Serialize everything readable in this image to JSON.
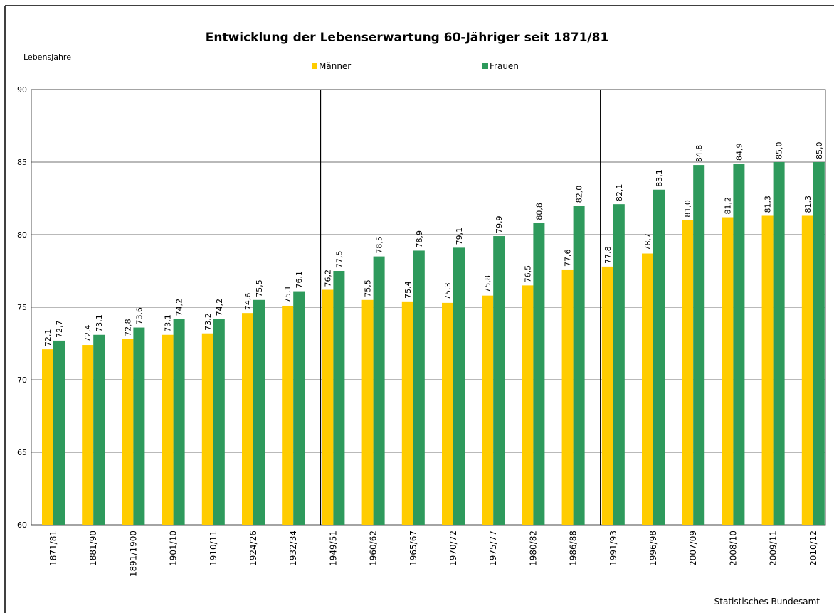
{
  "chart_data": {
    "type": "bar",
    "title": "Entwicklung der Lebenserwartung 60-Jähriger seit 1871/81",
    "y_axis_label": "Lebensjahre",
    "source": "Statistisches Bundesamt",
    "categories": [
      "1871/81",
      "1881/90",
      "1891/1900",
      "1901/10",
      "1910/11",
      "1924/26",
      "1932/34",
      "1949/51",
      "1960/62",
      "1965/67",
      "1970/72",
      "1975/77",
      "1980/82",
      "1986/88",
      "1991/93",
      "1996/98",
      "2007/09",
      "2008/10",
      "2009/11",
      "2010/12"
    ],
    "series": [
      {
        "name": "Männer",
        "color": "#ffcc00",
        "values": [
          72.1,
          72.4,
          72.8,
          73.1,
          73.2,
          74.6,
          75.1,
          76.2,
          75.5,
          75.4,
          75.3,
          75.8,
          76.5,
          77.6,
          77.8,
          78.7,
          81.0,
          81.2,
          81.3,
          81.3
        ],
        "value_labels": [
          "72,1",
          "72,4",
          "72,8",
          "73,1",
          "73,2",
          "74,6",
          "75,1",
          "76,2",
          "75,5",
          "75,4",
          "75,3",
          "75,8",
          "76,5",
          "77,6",
          "77,8",
          "78,7",
          "81,0",
          "81,2",
          "81,3",
          "81,3"
        ]
      },
      {
        "name": "Frauen",
        "color": "#2e9a5c",
        "values": [
          72.7,
          73.1,
          73.6,
          74.2,
          74.2,
          75.5,
          76.1,
          77.5,
          78.5,
          78.9,
          79.1,
          79.9,
          80.8,
          82.0,
          82.1,
          83.1,
          84.8,
          84.9,
          85.0,
          85.0
        ],
        "value_labels": [
          "72,7",
          "73,1",
          "73,6",
          "74,2",
          "74,2",
          "75,5",
          "76,1",
          "77,5",
          "78,5",
          "78,9",
          "79,1",
          "79,9",
          "80,8",
          "82,0",
          "82,1",
          "83,1",
          "84,8",
          "84,9",
          "85,0",
          "85,0"
        ]
      }
    ],
    "ylim": [
      60,
      90
    ],
    "yticks": [
      60,
      65,
      70,
      75,
      80,
      85,
      90
    ],
    "grid": true
  }
}
